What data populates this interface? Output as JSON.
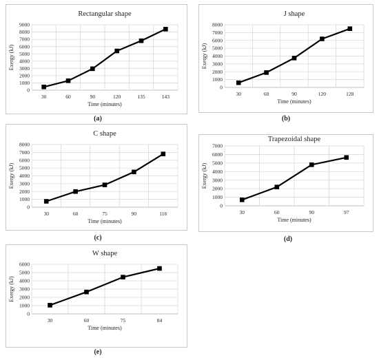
{
  "chart_data": [
    {
      "type": "line",
      "title": "Rectangular shape",
      "xlabel": "Time (minutes)",
      "ylabel": "Exergy (kJ)",
      "categories": [
        "30",
        "60",
        "90",
        "120",
        "135",
        "143"
      ],
      "values": [
        450,
        1300,
        2950,
        5400,
        6800,
        8400
      ],
      "ylim": [
        0,
        9000
      ],
      "yticks": [
        0,
        1000,
        2000,
        3000,
        4000,
        5000,
        6000,
        7000,
        8000,
        9000
      ],
      "grid": true,
      "caption": "(a)"
    },
    {
      "type": "line",
      "title": "J shape",
      "xlabel": "Time (minutes)",
      "ylabel": "Exergy (kJ)",
      "categories": [
        "30",
        "60",
        "90",
        "120",
        "128"
      ],
      "values": [
        600,
        1900,
        3750,
        6200,
        7500
      ],
      "ylim": [
        0,
        8000
      ],
      "yticks": [
        0,
        1000,
        2000,
        3000,
        4000,
        5000,
        6000,
        7000,
        8000
      ],
      "grid": true,
      "caption": "(b)"
    },
    {
      "type": "line",
      "title": "C shape",
      "xlabel": "Time (minutes)",
      "ylabel": "Exergy (kJ)",
      "categories": [
        "30",
        "60",
        "75",
        "90",
        "116"
      ],
      "values": [
        750,
        2000,
        2850,
        4500,
        6800
      ],
      "ylim": [
        0,
        8000
      ],
      "yticks": [
        0,
        1000,
        2000,
        3000,
        4000,
        5000,
        6000,
        7000,
        8000
      ],
      "grid": true,
      "caption": "(c)"
    },
    {
      "type": "line",
      "title": "Trapezoidal shape",
      "xlabel": "Time (minutes)",
      "ylabel": "Exergy (kJ)",
      "categories": [
        "30",
        "60",
        "90",
        "97"
      ],
      "values": [
        700,
        2200,
        4800,
        5650
      ],
      "ylim": [
        0,
        7000
      ],
      "yticks": [
        0,
        1000,
        2000,
        3000,
        4000,
        5000,
        6000,
        7000
      ],
      "grid": true,
      "caption": "(d)"
    },
    {
      "type": "line",
      "title": "W shape",
      "xlabel": "Time (minutes)",
      "ylabel": "Exergy (kJ)",
      "categories": [
        "30",
        "60",
        "75",
        "84"
      ],
      "values": [
        1050,
        2650,
        4450,
        5500
      ],
      "ylim": [
        0,
        6000
      ],
      "yticks": [
        0,
        1000,
        2000,
        3000,
        4000,
        5000,
        6000
      ],
      "grid": true,
      "caption": "(e)"
    }
  ]
}
